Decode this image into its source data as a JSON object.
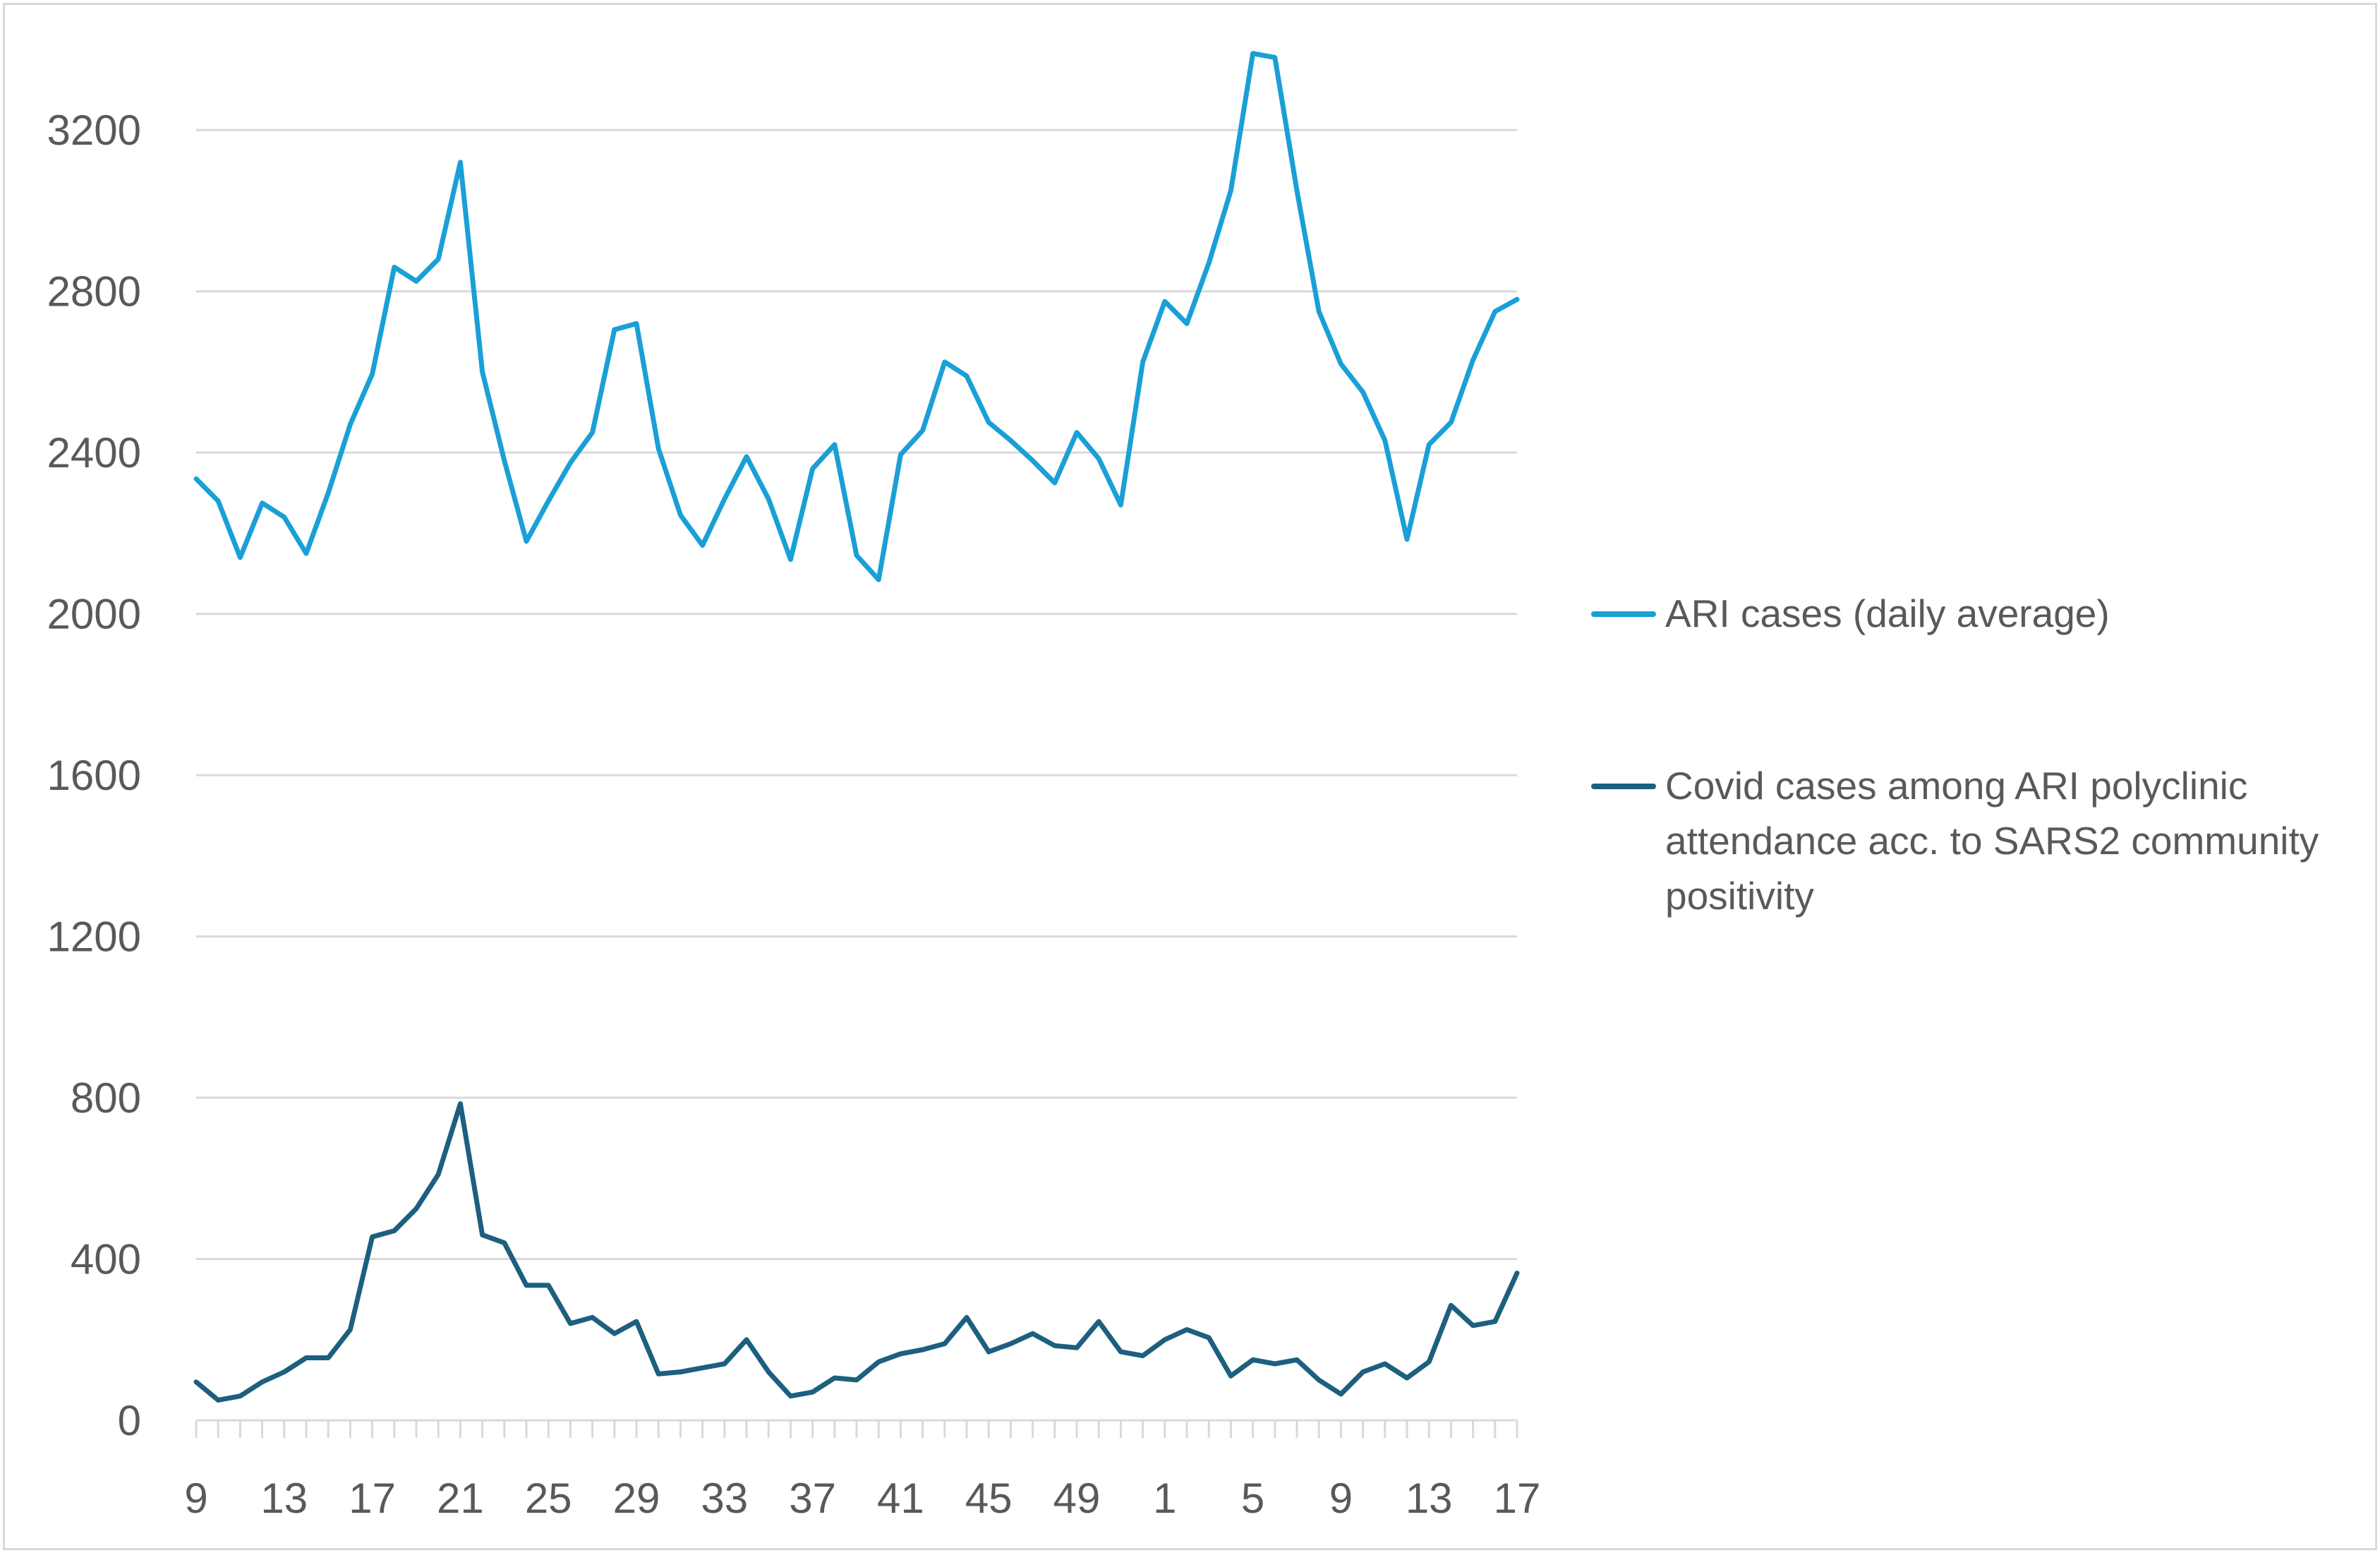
{
  "chart_data": {
    "type": "line",
    "title": "",
    "xlabel": "",
    "ylabel": "",
    "ylim": [
      0,
      3400
    ],
    "yticks": [
      0,
      400,
      800,
      1200,
      1600,
      2000,
      2400,
      2800,
      3200
    ],
    "grid": true,
    "legend_position": "right",
    "x": [
      "9",
      "10",
      "11",
      "12",
      "13",
      "14",
      "15",
      "16",
      "17",
      "18",
      "19",
      "20",
      "21",
      "22",
      "23",
      "24",
      "25",
      "26",
      "27",
      "28",
      "29",
      "30",
      "31",
      "32",
      "33",
      "34",
      "35",
      "36",
      "37",
      "38",
      "39",
      "40",
      "41",
      "42",
      "43",
      "44",
      "45",
      "46",
      "47",
      "48",
      "49",
      "50",
      "51",
      "52",
      "1",
      "2",
      "3",
      "4",
      "5",
      "6",
      "7",
      "8",
      "9",
      "10",
      "11",
      "12",
      "13",
      "14",
      "15",
      "16",
      "17"
    ],
    "x_tick_labels": [
      "9",
      "13",
      "17",
      "21",
      "25",
      "29",
      "33",
      "37",
      "41",
      "45",
      "49",
      "1",
      "5",
      "9",
      "13",
      "17"
    ],
    "series": [
      {
        "name": "ARI cases (daily average)",
        "color": "#1aa0d6",
        "values": [
          2335,
          2280,
          2140,
          2275,
          2240,
          2150,
          2300,
          2470,
          2595,
          2860,
          2825,
          2880,
          3120,
          2600,
          2380,
          2180,
          2280,
          2375,
          2450,
          2705,
          2720,
          2410,
          2245,
          2170,
          2285,
          2390,
          2285,
          2135,
          2360,
          2420,
          2145,
          2085,
          2395,
          2455,
          2625,
          2590,
          2475,
          2430,
          2380,
          2325,
          2450,
          2385,
          2270,
          2625,
          2775,
          2720,
          2870,
          3050,
          3390,
          3380,
          3050,
          2750,
          2620,
          2550,
          2430,
          2185,
          2420,
          2475,
          2630,
          2750,
          2780
        ]
      },
      {
        "name": "Covid cases among ARI polyclinic attendance acc. to SARS2 community positivity",
        "color": "#1d5f7f",
        "values": [
          95,
          50,
          60,
          95,
          120,
          155,
          155,
          225,
          455,
          470,
          525,
          610,
          785,
          460,
          440,
          335,
          335,
          240,
          255,
          215,
          245,
          115,
          120,
          130,
          140,
          200,
          120,
          60,
          70,
          105,
          100,
          145,
          165,
          175,
          190,
          255,
          170,
          190,
          215,
          185,
          180,
          245,
          170,
          160,
          200,
          225,
          205,
          110,
          150,
          140,
          150,
          100,
          65,
          120,
          140,
          105,
          145,
          285,
          235,
          245,
          365
        ]
      }
    ]
  }
}
